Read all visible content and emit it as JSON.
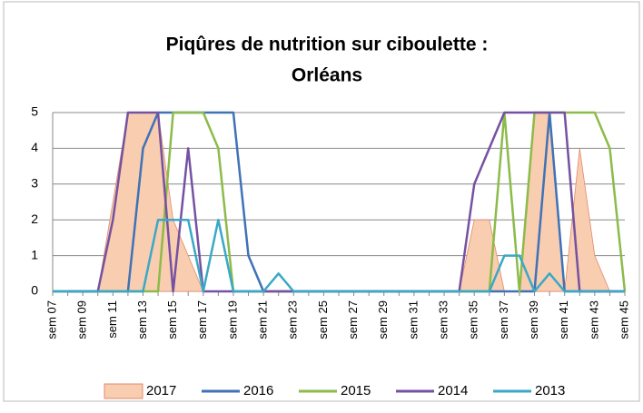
{
  "chart_data": {
    "type": "line",
    "title": [
      "Piqûres de nutrition sur ciboulette :",
      "Orléans"
    ],
    "categories": [
      "sem 07",
      null,
      "sem 09",
      null,
      "sem 11",
      null,
      "sem 13",
      null,
      "sem 15",
      null,
      "sem 17",
      null,
      "sem 19",
      null,
      "sem 21",
      null,
      "sem 23",
      null,
      "sem 25",
      null,
      "sem 27",
      null,
      "sem 29",
      null,
      "sem 31",
      null,
      "sem 33",
      null,
      "sem 35",
      null,
      "sem 37",
      null,
      "sem 39",
      null,
      "sem 41",
      null,
      "sem 43",
      null,
      "sem 45"
    ],
    "ylim": [
      0,
      5
    ],
    "yticks": [
      0,
      1,
      2,
      3,
      4,
      5
    ],
    "grid": true,
    "series": [
      {
        "name": "2017",
        "kind": "area",
        "color": "#f9cdb0",
        "values": [
          0,
          0,
          0,
          0,
          2.5,
          5,
          5,
          5,
          2,
          1,
          0,
          0,
          0,
          0,
          0,
          0,
          0,
          0,
          0,
          0,
          0,
          0,
          0,
          0,
          0,
          0,
          0,
          0,
          2,
          2,
          0,
          0,
          5,
          5,
          0,
          4,
          1,
          0,
          0
        ]
      },
      {
        "name": "2016",
        "color": "#3f72b6",
        "values": [
          0,
          0,
          0,
          0,
          0,
          0,
          4,
          5,
          5,
          5,
          5,
          5,
          5,
          1,
          0,
          0,
          0,
          0,
          0,
          0,
          0,
          0,
          0,
          0,
          0,
          0,
          0,
          0,
          0,
          0,
          0,
          0,
          0,
          5,
          0,
          0,
          0,
          0,
          0
        ]
      },
      {
        "name": "2015",
        "color": "#8cbb4a",
        "values": [
          0,
          0,
          0,
          0,
          0,
          0,
          0,
          0,
          5,
          5,
          5,
          4,
          0,
          0,
          0,
          0,
          0,
          0,
          0,
          0,
          0,
          0,
          0,
          0,
          0,
          0,
          0,
          0,
          0,
          0,
          5,
          0,
          5,
          5,
          5,
          5,
          5,
          4,
          0
        ]
      },
      {
        "name": "2014",
        "color": "#7552a1",
        "values": [
          null,
          0,
          0,
          0,
          2,
          5,
          5,
          5,
          0,
          4,
          0,
          0,
          0,
          0,
          0,
          0,
          0,
          0,
          0,
          0,
          0,
          0,
          0,
          0,
          0,
          0,
          0,
          0,
          3,
          4,
          5,
          5,
          5,
          5,
          5,
          0,
          0,
          0,
          0
        ]
      },
      {
        "name": "2013",
        "color": "#3aa8c6",
        "values": [
          0,
          0,
          0,
          0,
          0,
          0,
          0,
          2,
          2,
          2,
          0,
          2,
          0,
          0,
          0,
          0.5,
          0,
          0,
          0,
          0,
          0,
          0,
          0,
          0,
          0,
          0,
          0,
          0,
          0,
          0,
          1,
          1,
          0,
          0.5,
          0,
          0,
          0,
          0,
          0
        ]
      }
    ]
  }
}
